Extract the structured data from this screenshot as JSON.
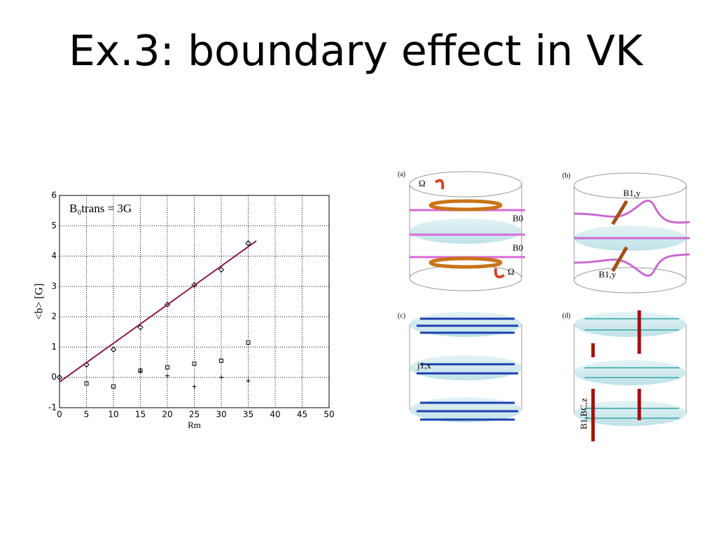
{
  "title": "Ex.3: boundary effect in VK",
  "chart_data": {
    "type": "scatter",
    "annotation": "B₀trans = 3G",
    "xlabel": "Rm",
    "ylabel": "<b> [G]",
    "xlim": [
      0,
      50
    ],
    "ylim": [
      -1,
      6
    ],
    "xticks": [
      0,
      5,
      10,
      15,
      20,
      25,
      30,
      35,
      40,
      45,
      50
    ],
    "yticks": [
      -1,
      0,
      1,
      2,
      3,
      4,
      5,
      6
    ],
    "grid": true,
    "series": [
      {
        "marker": "diamond",
        "color": "#000000",
        "x": [
          0,
          5,
          10,
          15,
          20,
          25,
          30,
          35
        ],
        "values": [
          0,
          0.42,
          0.92,
          1.65,
          2.4,
          3.05,
          3.55,
          4.42
        ]
      },
      {
        "marker": "square",
        "color": "#000000",
        "x": [
          5,
          10,
          15,
          20,
          25,
          30,
          35
        ],
        "values": [
          -0.2,
          -0.3,
          0.22,
          0.33,
          0.45,
          0.55,
          1.15
        ]
      },
      {
        "marker": "plus",
        "color": "#000000",
        "x": [
          15,
          20,
          25,
          30,
          35
        ],
        "values": [
          0.2,
          0.05,
          -0.3,
          0.0,
          -0.12
        ]
      },
      {
        "marker": "line",
        "color": "#8b1a4a",
        "x": [
          0,
          36.5
        ],
        "values": [
          -0.15,
          4.5
        ]
      }
    ]
  },
  "diagram": {
    "panels": [
      {
        "label": "(a)",
        "texts": [
          "Ω",
          "B0",
          "B0",
          "Ω"
        ]
      },
      {
        "label": "(b)",
        "texts": [
          "B1,y",
          "B1,y"
        ]
      },
      {
        "label": "(c)",
        "texts": [
          "j1,x"
        ]
      },
      {
        "label": "(d)",
        "texts": [
          "B1,BC,z"
        ]
      }
    ]
  }
}
